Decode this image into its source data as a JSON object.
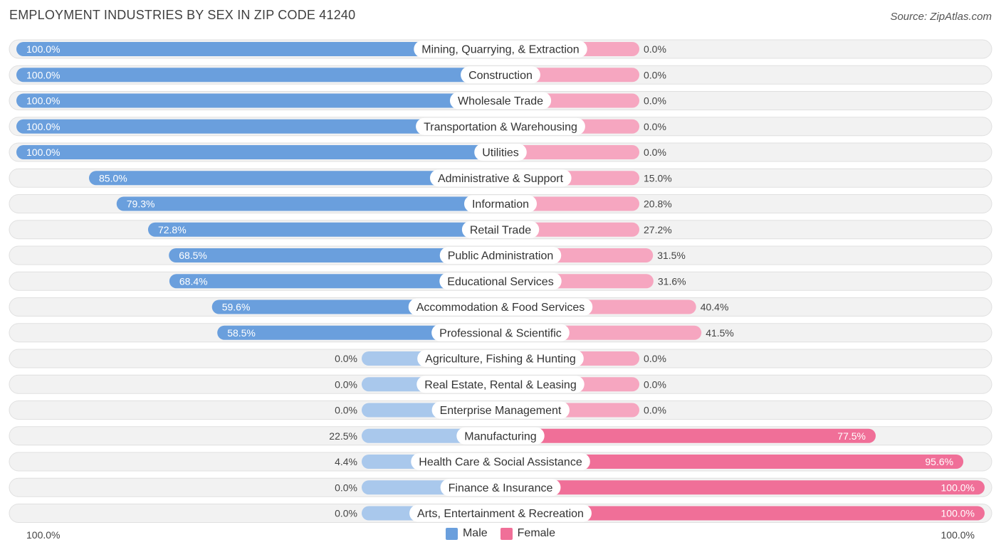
{
  "header": {
    "title": "EMPLOYMENT INDUSTRIES BY SEX IN ZIP CODE 41240",
    "source": "Source: ZipAtlas.com"
  },
  "colors": {
    "male_strong": "#6a9fdd",
    "male_light": "#a9c8ec",
    "female_strong": "#f06f98",
    "female_light": "#f6a6c0",
    "row_bg": "#f2f2f2"
  },
  "legend": {
    "male_label": "Male",
    "female_label": "Female"
  },
  "axis": {
    "left_label": "100.0%",
    "right_label": "100.0%"
  },
  "chart_data": {
    "type": "bar",
    "orientation": "horizontal-diverging",
    "title": "EMPLOYMENT INDUSTRIES BY SEX IN ZIP CODE 41240",
    "series": [
      {
        "name": "Male",
        "values": [
          100.0,
          100.0,
          100.0,
          100.0,
          100.0,
          85.0,
          79.3,
          72.8,
          68.5,
          68.4,
          59.6,
          58.5,
          0.0,
          0.0,
          0.0,
          22.5,
          4.4,
          0.0,
          0.0
        ]
      },
      {
        "name": "Female",
        "values": [
          0.0,
          0.0,
          0.0,
          0.0,
          0.0,
          15.0,
          20.8,
          27.2,
          31.5,
          31.6,
          40.4,
          41.5,
          0.0,
          0.0,
          0.0,
          77.5,
          95.6,
          100.0,
          100.0
        ]
      }
    ],
    "categories": [
      "Mining, Quarrying, & Extraction",
      "Construction",
      "Wholesale Trade",
      "Transportation & Warehousing",
      "Utilities",
      "Administrative & Support",
      "Information",
      "Retail Trade",
      "Public Administration",
      "Educational Services",
      "Accommodation & Food Services",
      "Professional & Scientific",
      "Agriculture, Fishing & Hunting",
      "Real Estate, Rental & Leasing",
      "Enterprise Management",
      "Manufacturing",
      "Health Care & Social Assistance",
      "Finance & Insurance",
      "Arts, Entertainment & Recreation"
    ],
    "male_labels": [
      "100.0%",
      "100.0%",
      "100.0%",
      "100.0%",
      "100.0%",
      "85.0%",
      "79.3%",
      "72.8%",
      "68.5%",
      "68.4%",
      "59.6%",
      "58.5%",
      "0.0%",
      "0.0%",
      "0.0%",
      "22.5%",
      "4.4%",
      "0.0%",
      "0.0%"
    ],
    "female_labels": [
      "0.0%",
      "0.0%",
      "0.0%",
      "0.0%",
      "0.0%",
      "15.0%",
      "20.8%",
      "27.2%",
      "31.5%",
      "31.6%",
      "40.4%",
      "41.5%",
      "0.0%",
      "0.0%",
      "0.0%",
      "77.5%",
      "95.6%",
      "100.0%",
      "100.0%"
    ],
    "xlim": [
      -100,
      100
    ],
    "legend_position": "bottom-center"
  }
}
